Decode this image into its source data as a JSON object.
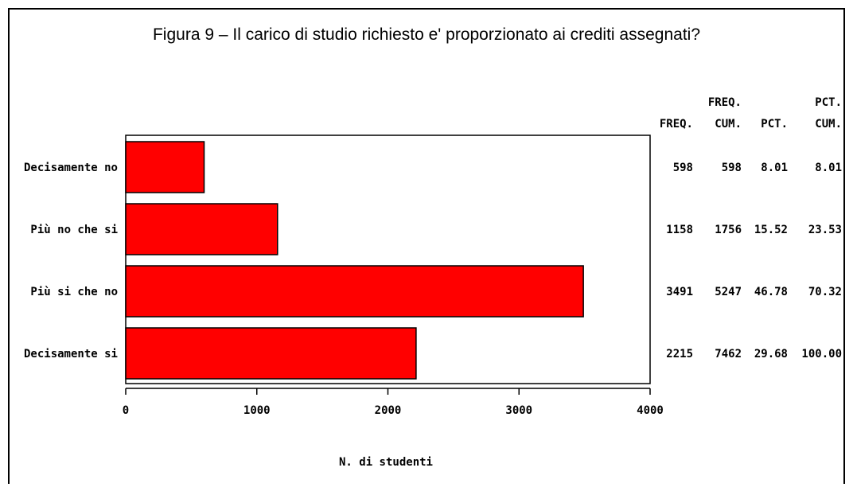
{
  "chart_data": {
    "type": "bar",
    "orientation": "horizontal",
    "title": "Figura 9 – Il carico di studio richiesto e' proporzionato ai crediti assegnati?",
    "xlabel": "N. di studenti",
    "ylabel": "",
    "xlim": [
      0,
      4000
    ],
    "x_ticks": [
      "0",
      "1000",
      "2000",
      "3000",
      "4000"
    ],
    "categories": [
      "Decisamente no",
      "Più no che si",
      "Più si che no",
      "Decisamente si"
    ],
    "values": [
      598,
      1158,
      3491,
      2215
    ],
    "bar_color": "#ff0000",
    "grid": false,
    "table": {
      "columns": [
        {
          "top": "",
          "bottom": "FREQ."
        },
        {
          "top": "FREQ.",
          "bottom": "CUM."
        },
        {
          "top": "",
          "bottom": "PCT."
        },
        {
          "top": "PCT.",
          "bottom": "CUM."
        }
      ],
      "rows": [
        [
          "598",
          "598",
          "8.01",
          "8.01"
        ],
        [
          "1158",
          "1756",
          "15.52",
          "23.53"
        ],
        [
          "3491",
          "5247",
          "46.78",
          "70.32"
        ],
        [
          "2215",
          "7462",
          "29.68",
          "100.00"
        ]
      ]
    }
  }
}
